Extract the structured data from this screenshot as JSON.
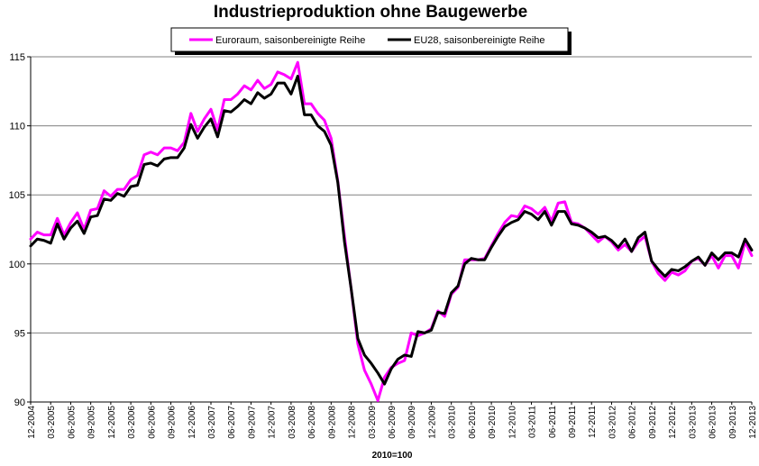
{
  "chart_data": {
    "type": "line",
    "title": "Industrieproduktion ohne Baugewerbe",
    "xlabel": "2010=100",
    "ylabel": "",
    "ylim": [
      90,
      115
    ],
    "y_ticks": [
      90,
      95,
      100,
      105,
      110,
      115
    ],
    "grid": "horizontal",
    "legend_position": "top",
    "x_tick_labels": [
      "12-2004",
      "03-2005",
      "06-2005",
      "09-2005",
      "12-2005",
      "03-2006",
      "06-2006",
      "09-2006",
      "12-2006",
      "03-2007",
      "06-2007",
      "09-2007",
      "12-2007",
      "03-2008",
      "06-2008",
      "09-2008",
      "12-2008",
      "03-2009",
      "06-2009",
      "09-2009",
      "12-2009",
      "03-2010",
      "06-2010",
      "09-2010",
      "12-2010",
      "03-2011",
      "06-2011",
      "09-2011",
      "12-2011",
      "03-2012",
      "06-2012",
      "09-2012",
      "12-2012",
      "03-2013",
      "06-2013",
      "09-2013",
      "12-2013"
    ],
    "series": [
      {
        "name": "Euroraum, saisonbereinigte Reihe",
        "color": "#ff00ff",
        "values": [
          101.8,
          102.3,
          102.1,
          102.1,
          103.3,
          102.1,
          103.0,
          103.7,
          102.5,
          103.9,
          104.0,
          105.3,
          104.9,
          105.4,
          105.4,
          106.1,
          106.4,
          107.9,
          108.1,
          107.9,
          108.4,
          108.4,
          108.2,
          108.8,
          110.9,
          109.6,
          110.5,
          111.2,
          109.7,
          111.9,
          111.9,
          112.3,
          112.9,
          112.6,
          113.3,
          112.7,
          113.0,
          113.9,
          113.7,
          113.4,
          114.6,
          111.6,
          111.6,
          110.9,
          110.4,
          109.1,
          106.0,
          102.0,
          98.2,
          94.2,
          92.3,
          91.3,
          90.1,
          91.8,
          92.5,
          92.8,
          93.0,
          95.0,
          94.8,
          95.0,
          95.3,
          96.6,
          96.2,
          97.8,
          98.3,
          100.3,
          100.3,
          100.3,
          100.4,
          101.3,
          102.2,
          103.0,
          103.5,
          103.4,
          104.2,
          104.0,
          103.6,
          104.1,
          103.1,
          104.4,
          104.5,
          103.0,
          102.9,
          102.6,
          102.1,
          101.6,
          102.0,
          101.6,
          101.0,
          101.4,
          100.9,
          101.6,
          102.0,
          100.2,
          99.3,
          98.8,
          99.4,
          99.2,
          99.5,
          100.2,
          100.4,
          99.9,
          100.6,
          99.7,
          100.6,
          100.6,
          99.7,
          101.6,
          100.6
        ]
      },
      {
        "name": "EU28, saisonbereinigte Reihe",
        "color": "#000000",
        "values": [
          101.3,
          101.8,
          101.7,
          101.5,
          102.9,
          101.8,
          102.6,
          103.1,
          102.2,
          103.4,
          103.5,
          104.7,
          104.6,
          105.1,
          104.9,
          105.6,
          105.7,
          107.2,
          107.3,
          107.1,
          107.6,
          107.7,
          107.7,
          108.4,
          110.1,
          109.1,
          109.9,
          110.5,
          109.2,
          111.1,
          111.0,
          111.4,
          111.9,
          111.6,
          112.4,
          112.0,
          112.3,
          113.1,
          113.1,
          112.3,
          113.6,
          110.8,
          110.8,
          110.0,
          109.6,
          108.6,
          105.9,
          101.6,
          98.2,
          94.6,
          93.4,
          92.8,
          92.1,
          91.3,
          92.4,
          93.1,
          93.4,
          93.3,
          95.1,
          95.0,
          95.2,
          96.5,
          96.4,
          97.9,
          98.4,
          100.0,
          100.4,
          100.3,
          100.3,
          101.2,
          102.0,
          102.7,
          103.0,
          103.2,
          103.8,
          103.6,
          103.2,
          103.8,
          102.8,
          103.8,
          103.8,
          102.9,
          102.8,
          102.6,
          102.3,
          101.9,
          102.0,
          101.7,
          101.2,
          101.8,
          100.9,
          101.9,
          102.3,
          100.2,
          99.6,
          99.1,
          99.6,
          99.5,
          99.8,
          100.2,
          100.5,
          99.9,
          100.8,
          100.3,
          100.8,
          100.8,
          100.5,
          101.8,
          101.0
        ]
      }
    ]
  }
}
